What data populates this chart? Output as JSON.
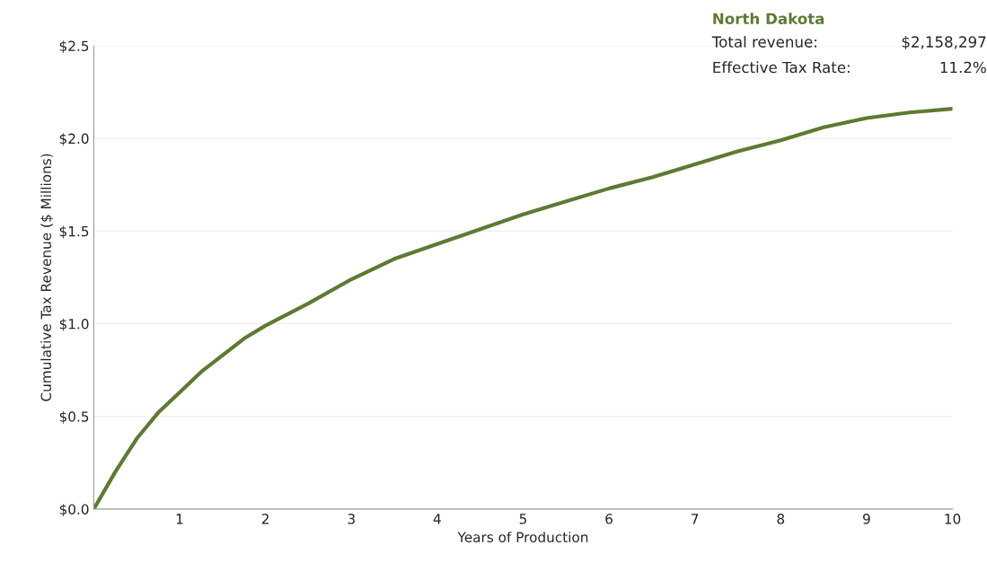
{
  "chart_data": {
    "type": "line",
    "title": "North Dakota",
    "annotations": [
      "Total revenue:",
      "$2,158,297",
      "Effective Tax Rate:",
      "11.2%"
    ],
    "xlabel": "Years of Production",
    "ylabel": "Cumulative Tax Revenue ($ Millions)",
    "x": [
      0,
      0.1,
      0.25,
      0.5,
      0.75,
      1,
      1.25,
      1.5,
      1.75,
      2,
      2.5,
      3,
      3.5,
      4,
      4.5,
      5,
      5.5,
      6,
      6.5,
      7,
      7.5,
      8,
      8.5,
      9,
      9.5,
      10
    ],
    "series": [
      {
        "color": "#5e7a32",
        "values": [
          0,
          0.08,
          0.2,
          0.38,
          0.52,
          0.63,
          0.74,
          0.83,
          0.92,
          0.99,
          1.11,
          1.24,
          1.35,
          1.43,
          1.51,
          1.59,
          1.66,
          1.73,
          1.79,
          1.86,
          1.93,
          1.99,
          2.06,
          2.11,
          2.14,
          2.16
        ]
      }
    ],
    "xlim": [
      0,
      10
    ],
    "xticks": [
      1,
      2,
      3,
      4,
      5,
      6,
      7,
      8,
      9,
      10
    ],
    "ylim": [
      0,
      2.5
    ],
    "yticks": [
      {
        "value": 0,
        "label": "$0.0"
      },
      {
        "value": 0.5,
        "label": "$0.5"
      },
      {
        "value": 1,
        "label": "$1.0"
      },
      {
        "value": 1.5,
        "label": "$1.5"
      },
      {
        "value": 2,
        "label": "$2.0"
      },
      {
        "value": 2.5,
        "label": "$2.5"
      }
    ],
    "grid": "y",
    "marker": "none",
    "line_style": "solid",
    "legend": false
  }
}
